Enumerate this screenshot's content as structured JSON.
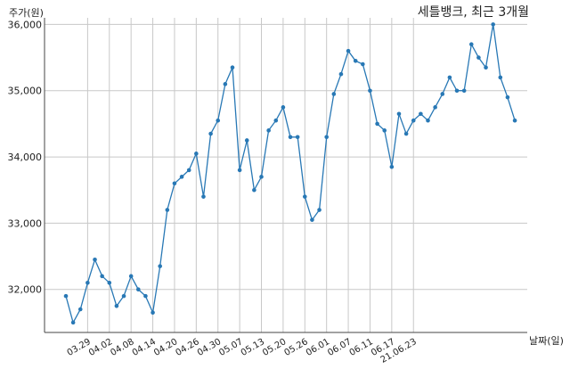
{
  "chart_data": {
    "type": "line",
    "title": "세틀뱅크, 최근 3개월",
    "ylabel": "주가(원)",
    "xlabel": "날짜(일)",
    "ylim": [
      31350,
      36100
    ],
    "yticks": [
      32000,
      33000,
      34000,
      35000,
      36000
    ],
    "ytick_labels": [
      "32,000",
      "33,000",
      "34,000",
      "35,000",
      "36,000"
    ],
    "xtick_labels": [
      "03.29",
      "04.02",
      "04.08",
      "04.14",
      "04.20",
      "04.26",
      "04.30",
      "05.07",
      "05.13",
      "05.20",
      "05.26",
      "06.01",
      "06.07",
      "06.11",
      "06.17",
      "21.06.23"
    ],
    "xtick_indices": [
      3,
      6,
      9,
      12,
      15,
      18,
      21,
      24,
      27,
      30,
      33,
      36,
      39,
      42,
      45,
      48
    ],
    "grid": true,
    "color": "#2878b5",
    "values": [
      31900,
      31500,
      31700,
      32100,
      32450,
      32200,
      32100,
      31750,
      31900,
      32200,
      32000,
      31900,
      31650,
      32350,
      33200,
      33600,
      33700,
      33800,
      34050,
      33400,
      34350,
      34550,
      35100,
      35350,
      33800,
      34250,
      33500,
      33700,
      34400,
      34550,
      34750,
      34300,
      34300,
      33400,
      33050,
      33200,
      34300,
      34950,
      35250,
      35600,
      35450,
      35400,
      35000,
      34500,
      34400,
      33850,
      34650,
      34350,
      34550,
      34650,
      34550,
      34750,
      34950,
      35200,
      35000,
      35000,
      35700,
      35500,
      35350,
      36000,
      35200,
      34900,
      34550
    ]
  }
}
